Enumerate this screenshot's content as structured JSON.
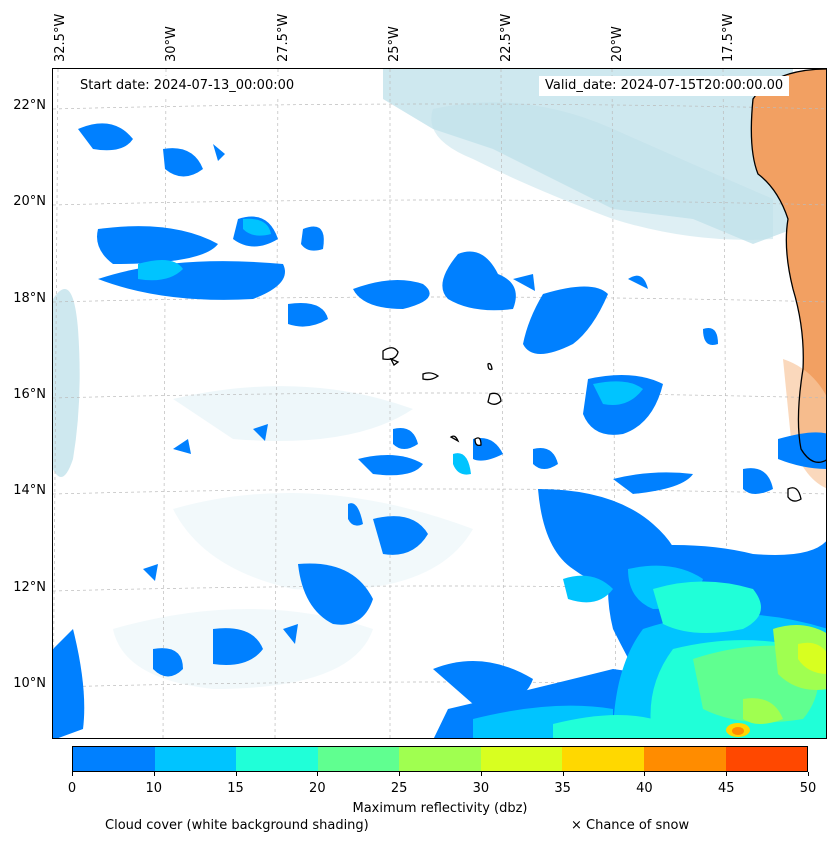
{
  "header": {
    "start_date": "Start date: 2024-07-13_00:00:00",
    "valid_date": "Valid_date: 2024-07-15T20:00:00.00"
  },
  "map": {
    "lon_labels": [
      "32.5°W",
      "30°W",
      "27.5°W",
      "25°W",
      "22.5°W",
      "20°W",
      "17.5°W"
    ],
    "lat_labels": [
      "22°N",
      "20°N",
      "18°N",
      "16°N",
      "14°N",
      "12°N",
      "10°N"
    ],
    "gridlines": true,
    "colors": {
      "reflectivity": [
        "#0080ff",
        "#00c4ff",
        "#20ffd8",
        "#60ff90",
        "#a0ff50",
        "#d8ff20",
        "#ffd800",
        "#ff8c00",
        "#ff4800"
      ],
      "cloud": "#bde0ea",
      "land": "#f0a060",
      "coastline": "#000000"
    }
  },
  "colorbar": {
    "ticks": [
      "0",
      "10",
      "15",
      "20",
      "25",
      "30",
      "35",
      "40",
      "45",
      "50"
    ],
    "label": "Maximum reflectivity (dbz)"
  },
  "legend": {
    "cloud_note": "Cloud cover (white background shading)",
    "snow_note": "× Chance of snow"
  }
}
